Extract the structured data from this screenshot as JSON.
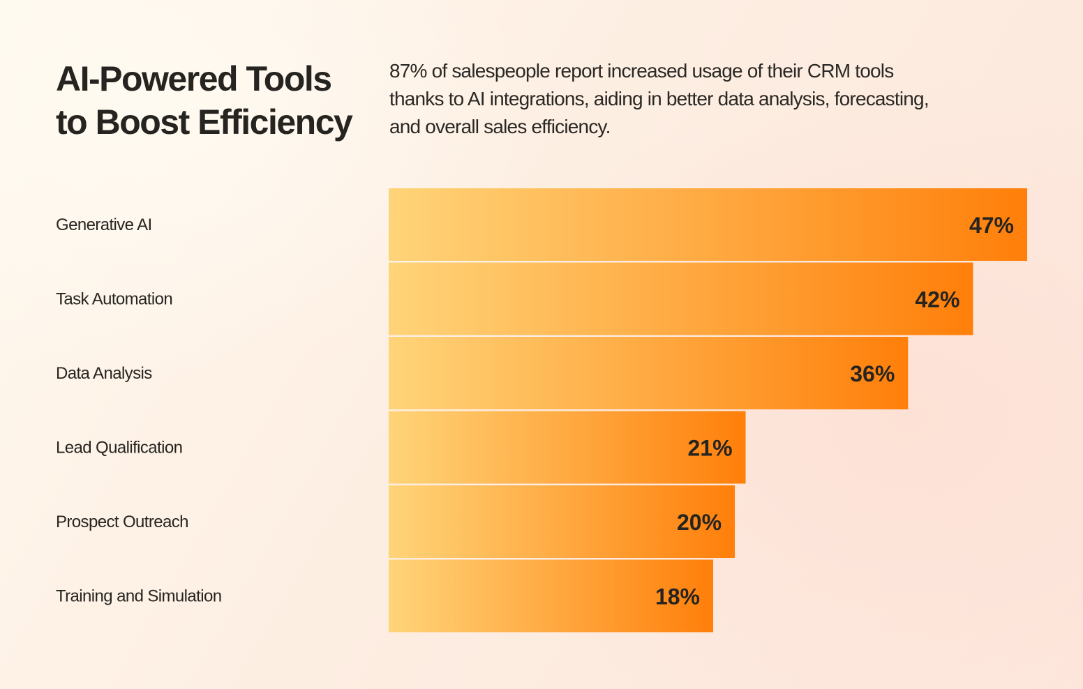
{
  "header": {
    "title_lines": [
      "AI-Powered Tools",
      "to Boost Efficiency"
    ],
    "subtitle_lines": [
      "87% of salespeople report increased usage of their CRM tools",
      "thanks to AI integrations, aiding in better data analysis, forecasting,",
      "and overall sales efficiency."
    ]
  },
  "colors": {
    "bar_start": "#ffd479",
    "bar_end": "#ff7f0a",
    "text": "#262420"
  },
  "chart_data": {
    "type": "bar",
    "orientation": "horizontal",
    "title": "AI-Powered Tools to Boost Efficiency",
    "xlabel": "",
    "ylabel": "",
    "categories": [
      "Generative AI",
      "Task Automation",
      "Data Analysis",
      "Lead Qualification",
      "Prospect Outreach",
      "Training and Simulation"
    ],
    "values": [
      47,
      42,
      36,
      21,
      20,
      18
    ],
    "value_labels": [
      "47%",
      "42%",
      "36%",
      "21%",
      "20%",
      "18%"
    ],
    "unit": "%",
    "grid": false,
    "legend": "none"
  }
}
